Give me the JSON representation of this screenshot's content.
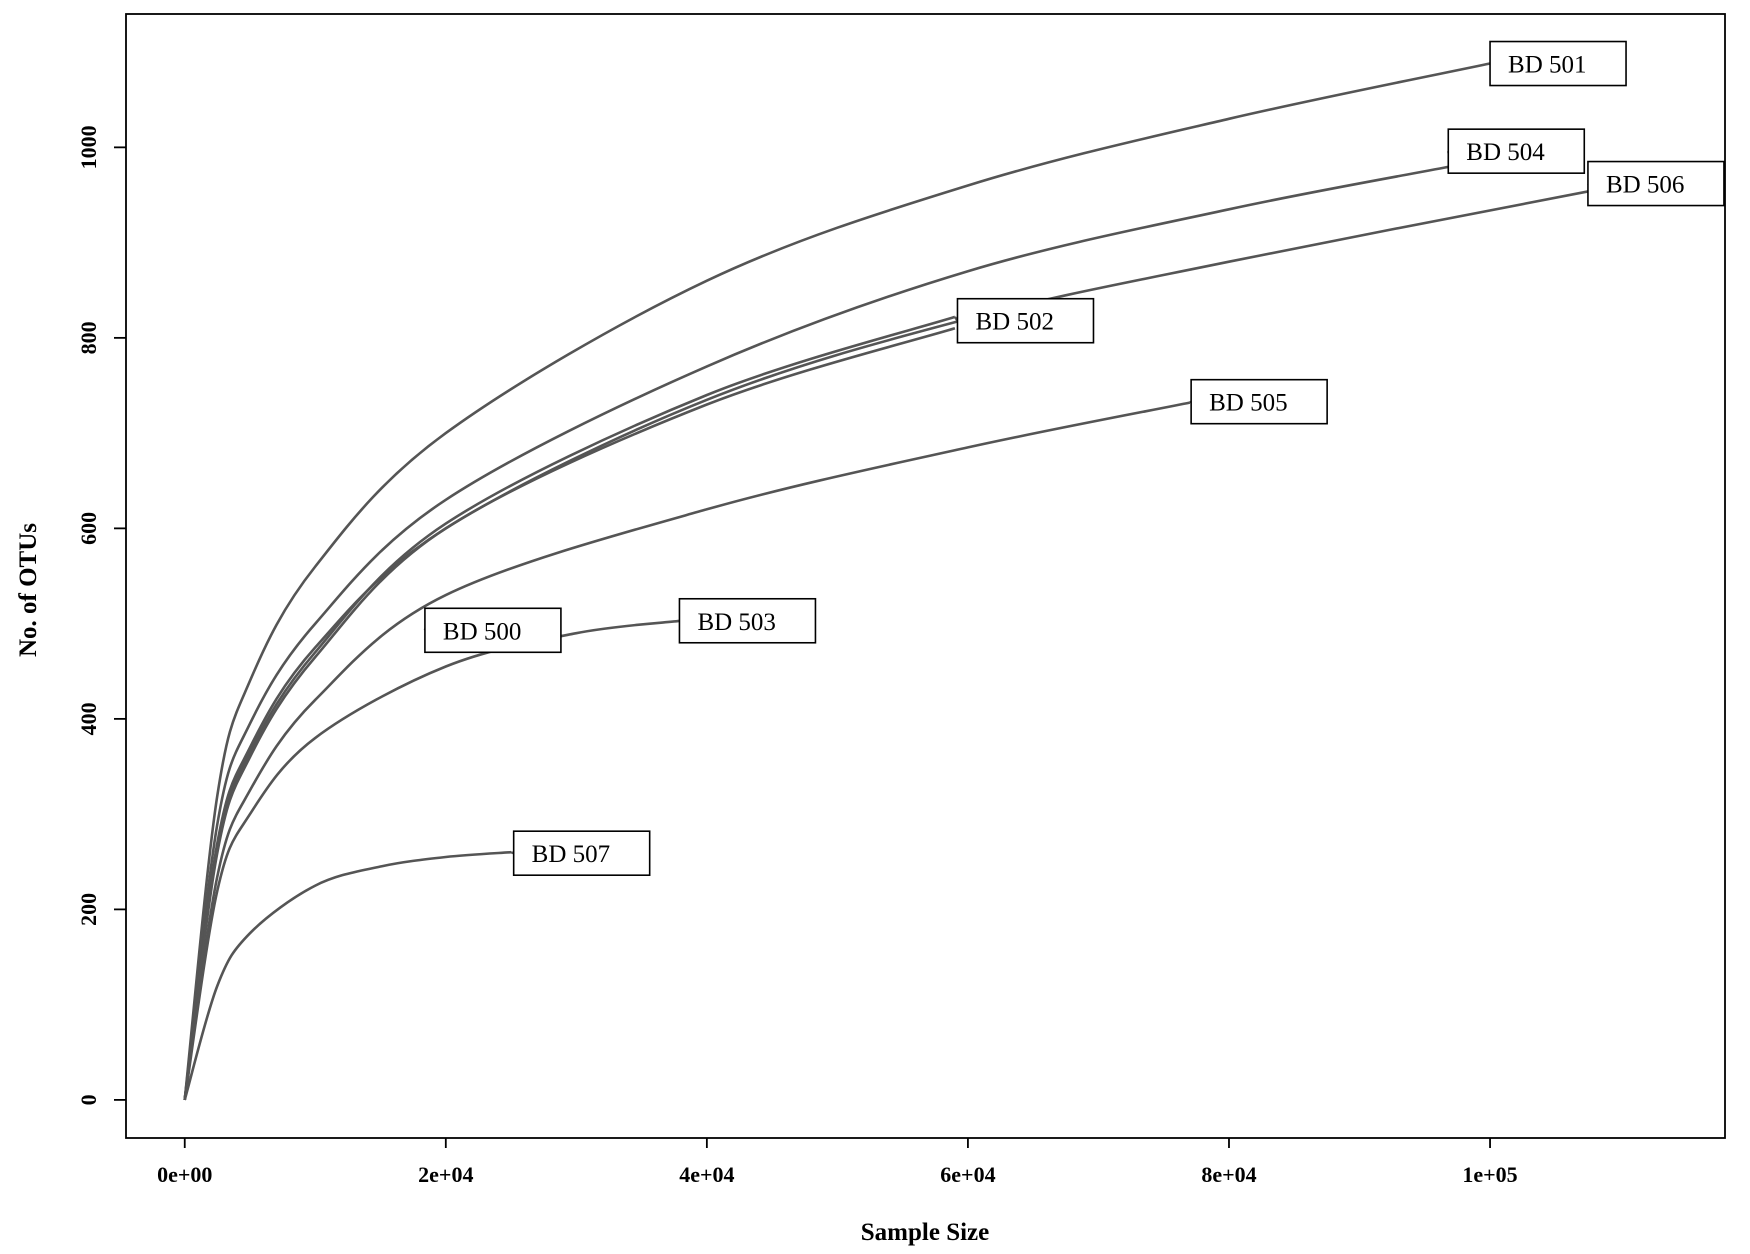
{
  "chart_data": {
    "type": "line",
    "title": "",
    "xlabel": "Sample Size",
    "ylabel": "No. of OTUs",
    "xlim": [
      -4500,
      118000
    ],
    "ylim": [
      -40,
      1140
    ],
    "x_ticks": [
      {
        "value": 0,
        "label": "0e+00"
      },
      {
        "value": 20000,
        "label": "2e+04"
      },
      {
        "value": 40000,
        "label": "4e+04"
      },
      {
        "value": 60000,
        "label": "6e+04"
      },
      {
        "value": 80000,
        "label": "8e+04"
      },
      {
        "value": 100000,
        "label": "1e+05"
      }
    ],
    "y_ticks": [
      {
        "value": 0,
        "label": "0"
      },
      {
        "value": 200,
        "label": "200"
      },
      {
        "value": 400,
        "label": "400"
      },
      {
        "value": 600,
        "label": "600"
      },
      {
        "value": 800,
        "label": "800"
      },
      {
        "value": 1000,
        "label": "1000"
      }
    ],
    "grid": false,
    "legend": "none (series labelled directly with boxed callouts)",
    "line_color": "#555555",
    "series": [
      {
        "name": "BD 501",
        "x": [
          0,
          2500,
          5000,
          10000,
          20000,
          40000,
          60000,
          80000,
          100000
        ],
        "y": [
          0,
          320,
          440,
          560,
          700,
          860,
          960,
          1030,
          1088
        ]
      },
      {
        "name": "BD 504",
        "x": [
          0,
          2500,
          5000,
          10000,
          20000,
          40000,
          60000,
          80000,
          97000
        ],
        "y": [
          0,
          290,
          395,
          500,
          630,
          770,
          870,
          935,
          980
        ]
      },
      {
        "name": "BD 506",
        "x": [
          0,
          2500,
          5000,
          10000,
          20000,
          40000,
          60000,
          80000,
          108000
        ],
        "y": [
          0,
          270,
          370,
          475,
          600,
          735,
          820,
          880,
          955
        ]
      },
      {
        "name": "BD 502",
        "x": [
          0,
          2500,
          5000,
          10000,
          20000,
          40000,
          59000
        ],
        "y": [
          0,
          265,
          365,
          470,
          605,
          740,
          822
        ]
      },
      {
        "name": "BD 500",
        "x": [
          0,
          2500,
          5000,
          10000,
          20000,
          40000,
          59000
        ],
        "y": [
          0,
          260,
          360,
          465,
          600,
          730,
          810
        ]
      },
      {
        "name": "BD 505",
        "x": [
          0,
          2500,
          5000,
          10000,
          20000,
          40000,
          60000,
          77000
        ],
        "y": [
          0,
          235,
          325,
          420,
          530,
          620,
          685,
          732
        ]
      },
      {
        "name": "BD 503",
        "x": [
          0,
          2500,
          5000,
          10000,
          20000,
          30000,
          38000
        ],
        "y": [
          0,
          220,
          300,
          380,
          455,
          490,
          503
        ]
      },
      {
        "name": "BD 507",
        "x": [
          0,
          2500,
          5000,
          10000,
          15000,
          20000,
          25000
        ],
        "y": [
          0,
          120,
          175,
          225,
          245,
          255,
          260
        ]
      }
    ],
    "labels": [
      {
        "text": "BD 501",
        "anchor_x": 100000,
        "anchor_y": 1088,
        "box_x": 100000,
        "box_y": 1088
      },
      {
        "text": "BD 504",
        "anchor_x": 97000,
        "anchor_y": 980,
        "box_x": 96800,
        "box_y": 996
      },
      {
        "text": "BD 506",
        "anchor_x": 108000,
        "anchor_y": 955,
        "box_x": 107500,
        "box_y": 962
      },
      {
        "text": "BD 502",
        "anchor_x": 59000,
        "anchor_y": 822,
        "box_x": 59200,
        "box_y": 818
      },
      {
        "text": "BD 500",
        "anchor_x": 18500,
        "anchor_y": 498,
        "box_x": 18400,
        "box_y": 493
      },
      {
        "text": "BD 505",
        "anchor_x": 77000,
        "anchor_y": 732,
        "box_x": 77100,
        "box_y": 733
      },
      {
        "text": "BD 503",
        "anchor_x": 38000,
        "anchor_y": 503,
        "box_x": 37900,
        "box_y": 503
      },
      {
        "text": "BD 507",
        "anchor_x": 25000,
        "anchor_y": 260,
        "box_x": 25200,
        "box_y": 259
      }
    ]
  }
}
